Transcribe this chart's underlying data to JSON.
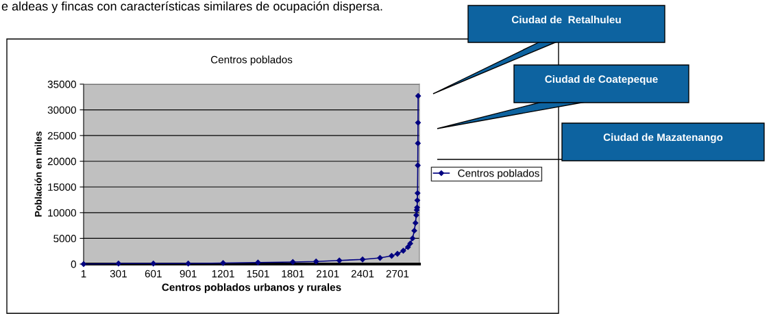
{
  "chart_data": {
    "type": "line",
    "title": "Centros poblados",
    "xlabel": "Centros poblados urbanos y rurales",
    "ylabel": "Población en miles",
    "series": [
      {
        "name": "Centros poblados",
        "color": "#000080",
        "x": [
          1,
          301,
          601,
          901,
          1201,
          1501,
          1801,
          2001,
          2201,
          2401,
          2551,
          2651,
          2701,
          2751,
          2791,
          2811,
          2831,
          2846,
          2856,
          2863,
          2867,
          2870,
          2872,
          2874,
          2876,
          2877,
          2878,
          2879
        ],
        "values": [
          0,
          100,
          100,
          100,
          200,
          300,
          400,
          500,
          700,
          900,
          1200,
          1600,
          2000,
          2600,
          3300,
          4000,
          5000,
          6500,
          8000,
          9500,
          10500,
          11000,
          12400,
          13800,
          19200,
          23500,
          27500,
          32700
        ]
      }
    ],
    "xlim": [
      1,
      2890
    ],
    "xticks": [
      1,
      301,
      601,
      901,
      1201,
      1501,
      1801,
      2101,
      2401,
      2701
    ],
    "ylim": [
      0,
      35000
    ],
    "yticks": [
      0,
      5000,
      10000,
      15000,
      20000,
      25000,
      30000,
      35000
    ],
    "grid": "y",
    "legend": "right",
    "marker": "diamond",
    "line_style": "solid",
    "annotations": [
      "e aldeas y fincas con características similares de ocupación dispersa.",
      "Ciudad de  Retalhuleu",
      "Ciudad de Coatepeque",
      "Ciudad de Mazatenango"
    ]
  }
}
